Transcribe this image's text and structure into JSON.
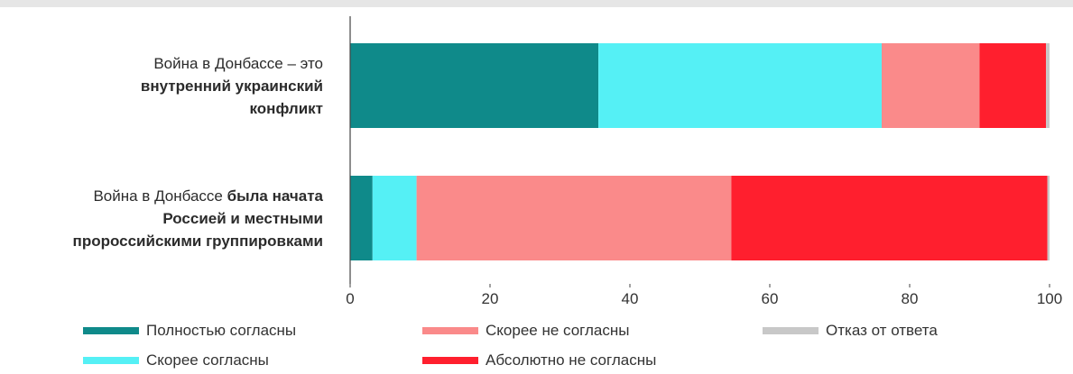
{
  "chart_data": {
    "type": "bar",
    "orientation": "horizontal",
    "stacked": true,
    "categories": [
      [
        {
          "text": "Война в Донбассе – это",
          "bold": false
        },
        {
          "text": "внутренний украинский",
          "bold": true
        },
        {
          "text": "конфликт",
          "bold": true
        }
      ],
      [
        {
          "text": "Война в Донбассе ",
          "bold": false,
          "inline_with_next": true
        },
        {
          "text": "была начата",
          "bold": true
        },
        {
          "text": "Россией и местными",
          "bold": true
        },
        {
          "text": "пророссийскими группировками",
          "bold": true
        }
      ]
    ],
    "series": [
      {
        "name": "Полностью согласны",
        "color": "#0f8a8a",
        "values": [
          35.5,
          3.2
        ]
      },
      {
        "name": "Скорее согласны",
        "color": "#55f0f5",
        "values": [
          40.5,
          6.3
        ]
      },
      {
        "name": "Скорее не согласны",
        "color": "#fa8a8a",
        "values": [
          14.0,
          45.0
        ]
      },
      {
        "name": "Абсолютно не согласны",
        "color": "#ff1f2e",
        "values": [
          9.5,
          45.2
        ]
      },
      {
        "name": "Отказ от ответа",
        "color": "#c8c8c8",
        "values": [
          0.5,
          0.3
        ]
      }
    ],
    "xlim": [
      0,
      100
    ],
    "xticks": [
      "0",
      "20",
      "40",
      "60",
      "80",
      "100"
    ],
    "grid": false,
    "legend": {
      "placement": "bottom",
      "order": [
        "Полностью согласны",
        "Скорее согласны",
        "Скорее не согласны",
        "Абсолютно не согласны",
        "Отказ от ответа"
      ]
    }
  }
}
